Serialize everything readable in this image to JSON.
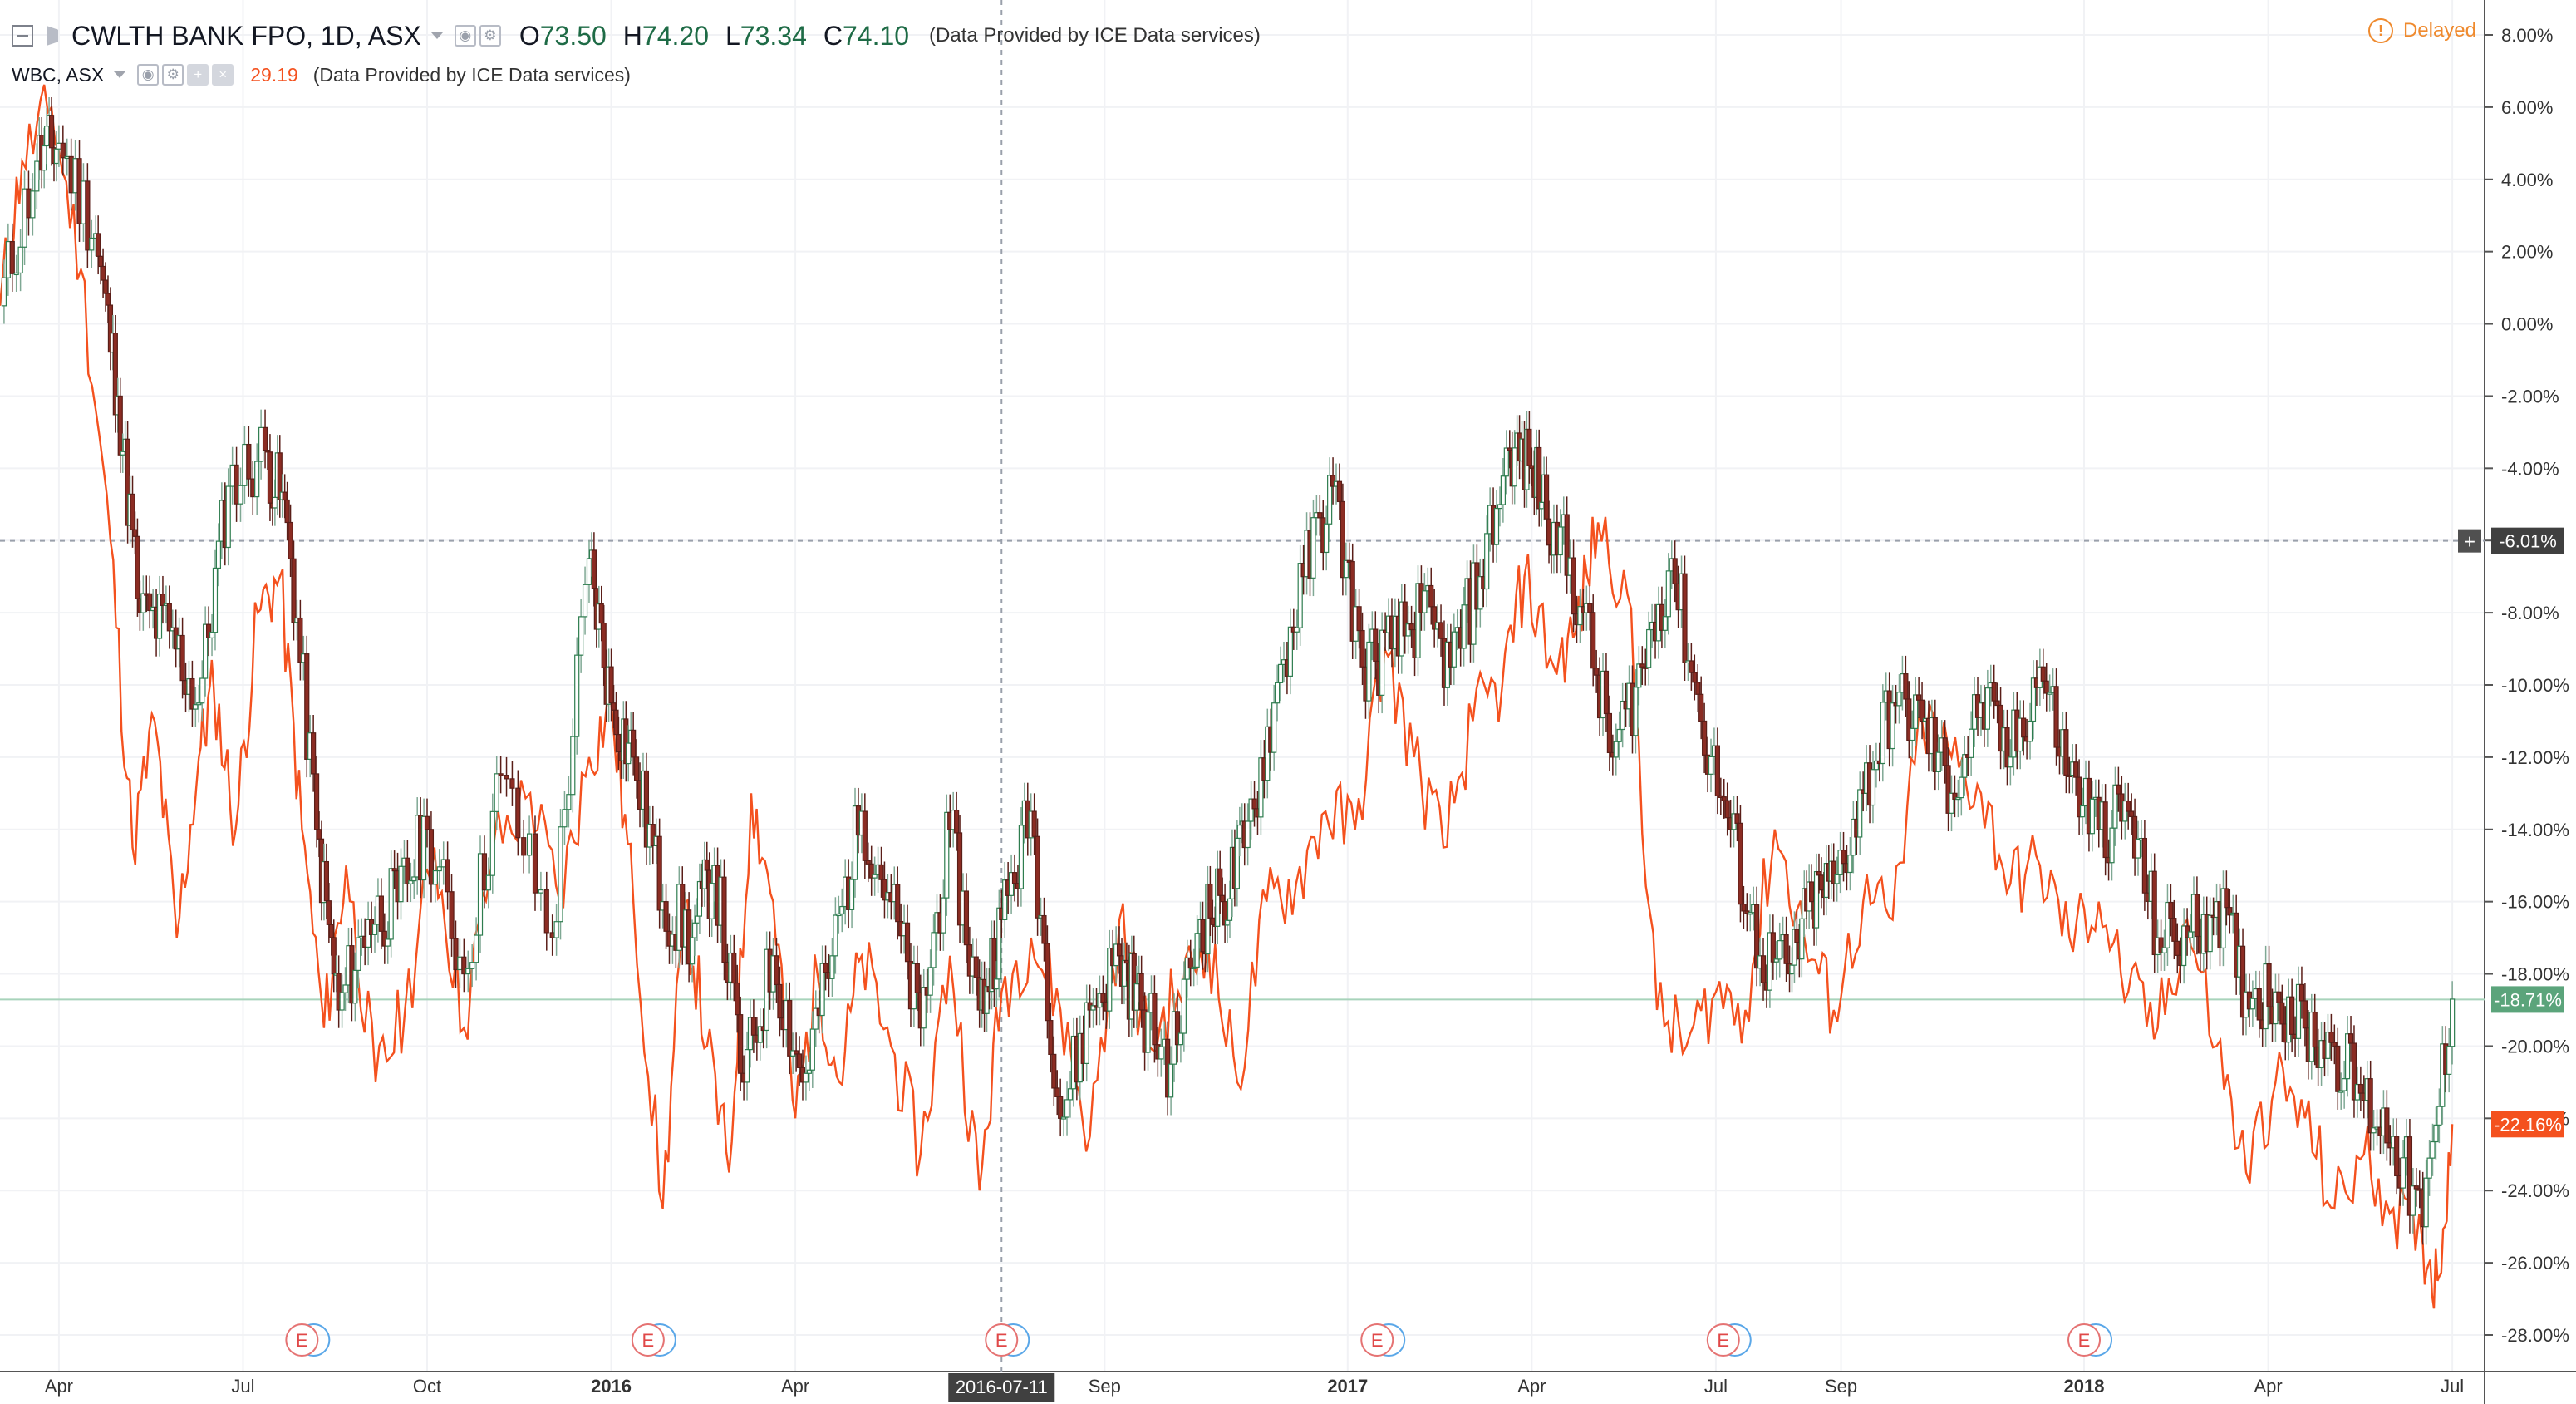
{
  "main_symbol": {
    "title": "CWLTH BANK FPO, 1D, ASX",
    "ohlc": [
      {
        "key": "O",
        "value": "73.50"
      },
      {
        "key": "H",
        "value": "74.20"
      },
      {
        "key": "L",
        "value": "73.34"
      },
      {
        "key": "C",
        "value": "74.10"
      }
    ],
    "source": "(Data Provided by ICE Data services)"
  },
  "compare_symbol": {
    "title": "WBC, ASX",
    "value": "29.19",
    "source": "(Data Provided by ICE Data services)"
  },
  "delayed_label": "Delayed",
  "crosshair_date": "2016-07-11",
  "colors": {
    "up": "#2e7d4f",
    "down": "#8b2c23",
    "compare_line": "#f4511e",
    "grid": "#f1f2f5",
    "axis_text": "#333333",
    "last_price_badge": "#5ba47b",
    "compare_badge": "#f4511e",
    "crosshair_badge": "#404040"
  },
  "chart_data": {
    "type": "line",
    "y_scale": "percent",
    "ylim": [
      -28.5,
      8.6
    ],
    "y_ticks": [
      "8.00%",
      "6.00%",
      "4.00%",
      "2.00%",
      "0.00%",
      "-2.00%",
      "-4.00%",
      "-6.00%",
      "-8.00%",
      "-10.00%",
      "-12.00%",
      "-14.00%",
      "-16.00%",
      "-18.00%",
      "-20.00%",
      "-22.00%",
      "-24.00%",
      "-26.00%",
      "-28.00%"
    ],
    "x_ticks": [
      {
        "label": "Apr",
        "x": 2015.25,
        "major": false
      },
      {
        "label": "Jul",
        "x": 2015.5,
        "major": false
      },
      {
        "label": "Oct",
        "x": 2015.75,
        "major": false
      },
      {
        "label": "2016",
        "x": 2016.0,
        "major": true
      },
      {
        "label": "Apr",
        "x": 2016.25,
        "major": false
      },
      {
        "label": "Sep",
        "x": 2016.67,
        "major": false
      },
      {
        "label": "2017",
        "x": 2017.0,
        "major": true
      },
      {
        "label": "Apr",
        "x": 2017.25,
        "major": false
      },
      {
        "label": "Jul",
        "x": 2017.5,
        "major": false
      },
      {
        "label": "Sep",
        "x": 2017.67,
        "major": false
      },
      {
        "label": "2018",
        "x": 2018.0,
        "major": true
      },
      {
        "label": "Apr",
        "x": 2018.25,
        "major": false
      },
      {
        "label": "Jul",
        "x": 2018.5,
        "major": false
      }
    ],
    "xlim": [
      2015.17,
      2018.51
    ],
    "crosshair": {
      "x": 2016.53,
      "y": -6.01
    },
    "series": [
      {
        "name": "CWLTH BANK FPO, 1D, ASX",
        "style": "candles",
        "x": [
          2015.17,
          2015.22,
          2015.25,
          2015.3,
          2015.33,
          2015.36,
          2015.4,
          2015.44,
          2015.48,
          2015.53,
          2015.56,
          2015.6,
          2015.63,
          2015.67,
          2015.71,
          2015.75,
          2015.8,
          2015.85,
          2015.92,
          2015.97,
          2016.0,
          2016.03,
          2016.07,
          2016.11,
          2016.14,
          2016.18,
          2016.22,
          2016.26,
          2016.3,
          2016.34,
          2016.38,
          2016.42,
          2016.46,
          2016.5,
          2016.53,
          2016.57,
          2016.61,
          2016.65,
          2016.69,
          2016.72,
          2016.76,
          2016.8,
          2016.83,
          2016.86,
          2016.9,
          2016.94,
          2016.98,
          2017.02,
          2017.06,
          2017.1,
          2017.14,
          2017.18,
          2017.22,
          2017.25,
          2017.28,
          2017.32,
          2017.36,
          2017.4,
          2017.44,
          2017.48,
          2017.52,
          2017.56,
          2017.6,
          2017.63,
          2017.66,
          2017.7,
          2017.74,
          2017.78,
          2017.82,
          2017.86,
          2017.9,
          2017.94,
          2017.98,
          2018.02,
          2018.06,
          2018.1,
          2018.14,
          2018.18,
          2018.22,
          2018.26,
          2018.3,
          2018.34,
          2018.38,
          2018.42,
          2018.46,
          2018.5
        ],
        "values": [
          0.5,
          4.5,
          5.0,
          2.5,
          -2.0,
          -8.0,
          -8.5,
          -10.5,
          -4.5,
          -3.5,
          -5.5,
          -14.0,
          -19.0,
          -16.5,
          -16.0,
          -14.0,
          -18.0,
          -12.5,
          -17.0,
          -6.5,
          -10.5,
          -12.0,
          -16.0,
          -17.0,
          -15.0,
          -21.0,
          -17.5,
          -21.0,
          -17.5,
          -13.5,
          -16.0,
          -19.5,
          -14.0,
          -19.0,
          -16.5,
          -13.5,
          -22.0,
          -19.0,
          -17.5,
          -19.0,
          -20.5,
          -16.5,
          -16.0,
          -14.5,
          -10.5,
          -7.0,
          -4.5,
          -9.5,
          -9.0,
          -8.0,
          -9.5,
          -7.0,
          -3.5,
          -4.0,
          -5.5,
          -8.0,
          -12.0,
          -9.5,
          -6.5,
          -11.0,
          -14.0,
          -17.5,
          -18.0,
          -16.0,
          -15.5,
          -13.0,
          -10.5,
          -11.0,
          -13.0,
          -10.5,
          -12.0,
          -9.5,
          -12.5,
          -14.0,
          -13.5,
          -17.0,
          -17.0,
          -16.0,
          -18.5,
          -18.5,
          -19.5,
          -20.0,
          -21.5,
          -22.5,
          -25.0,
          -18.7
        ]
      },
      {
        "name": "WBC, ASX",
        "style": "line",
        "x": [
          2015.17,
          2015.2,
          2015.24,
          2015.28,
          2015.32,
          2015.35,
          2015.38,
          2015.41,
          2015.44,
          2015.46,
          2015.49,
          2015.52,
          2015.55,
          2015.58,
          2015.61,
          2015.64,
          2015.68,
          2015.72,
          2015.76,
          2015.8,
          2015.84,
          2015.89,
          2015.93,
          2015.97,
          2016.0,
          2016.03,
          2016.07,
          2016.1,
          2016.13,
          2016.16,
          2016.19,
          2016.22,
          2016.25,
          2016.28,
          2016.31,
          2016.34,
          2016.38,
          2016.42,
          2016.46,
          2016.5,
          2016.53,
          2016.57,
          2016.61,
          2016.65,
          2016.69,
          2016.73,
          2016.77,
          2016.81,
          2016.85,
          2016.89,
          2016.93,
          2016.97,
          2017.01,
          2017.05,
          2017.09,
          2017.13,
          2017.17,
          2017.21,
          2017.24,
          2017.28,
          2017.31,
          2017.34,
          2017.38,
          2017.42,
          2017.46,
          2017.5,
          2017.54,
          2017.58,
          2017.62,
          2017.66,
          2017.7,
          2017.74,
          2017.78,
          2017.82,
          2017.86,
          2017.9,
          2017.94,
          2017.98,
          2018.02,
          2018.06,
          2018.1,
          2018.14,
          2018.18,
          2018.22,
          2018.26,
          2018.3,
          2018.34,
          2018.38,
          2018.42,
          2018.46,
          2018.48,
          2018.5
        ],
        "values": [
          0.5,
          4.5,
          6.0,
          1.5,
          -6.0,
          -14.5,
          -11.0,
          -17.0,
          -12.0,
          -10.0,
          -14.0,
          -8.0,
          -7.0,
          -14.0,
          -19.5,
          -15.0,
          -21.0,
          -19.0,
          -14.5,
          -19.5,
          -14.5,
          -13.0,
          -16.0,
          -12.0,
          -10.5,
          -16.0,
          -24.5,
          -16.0,
          -20.0,
          -23.5,
          -13.0,
          -16.0,
          -22.0,
          -18.0,
          -21.0,
          -17.5,
          -20.0,
          -23.0,
          -17.5,
          -24.0,
          -18.5,
          -17.0,
          -19.0,
          -22.5,
          -16.5,
          -20.0,
          -18.5,
          -17.0,
          -21.0,
          -16.0,
          -15.5,
          -13.5,
          -14.0,
          -9.0,
          -12.0,
          -14.5,
          -11.0,
          -10.0,
          -7.0,
          -9.5,
          -8.5,
          -5.5,
          -7.5,
          -19.0,
          -20.0,
          -18.5,
          -19.0,
          -14.0,
          -17.0,
          -19.0,
          -16.0,
          -16.5,
          -11.0,
          -12.0,
          -13.0,
          -15.5,
          -15.0,
          -17.0,
          -16.0,
          -18.5,
          -19.5,
          -16.5,
          -20.0,
          -23.5,
          -21.0,
          -22.0,
          -24.5,
          -23.0,
          -24.5,
          -25.5,
          -26.5,
          -22.16
        ]
      }
    ],
    "last_value_labels": [
      {
        "text": "-6.01%",
        "y": -6.01,
        "kind": "crosshair"
      },
      {
        "text": "-18.71%",
        "y": -18.71,
        "kind": "main"
      },
      {
        "text": "-22.16%",
        "y": -22.16,
        "kind": "compare"
      }
    ],
    "event_markers": {
      "label": "E",
      "x": [
        2015.58,
        2016.05,
        2016.53,
        2017.04,
        2017.51,
        2018.0
      ]
    }
  }
}
